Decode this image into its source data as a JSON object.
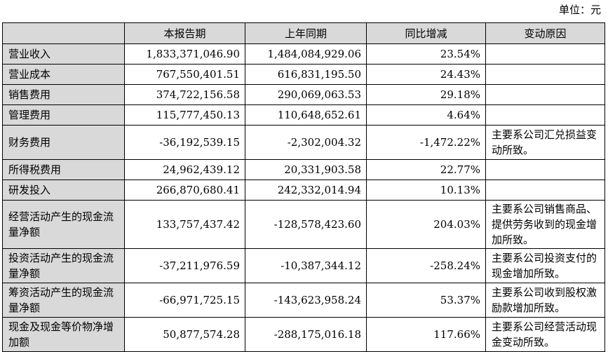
{
  "unit_label": "单位：元",
  "headers": [
    "",
    "本报告期",
    "上年同期",
    "同比增减",
    "变动原因"
  ],
  "rows": [
    {
      "item": "营业收入",
      "current": "1,833,371,046.90",
      "previous": "1,484,084,929.06",
      "change": "23.54%",
      "reason": ""
    },
    {
      "item": "营业成本",
      "current": "767,550,401.51",
      "previous": "616,831,195.50",
      "change": "24.43%",
      "reason": ""
    },
    {
      "item": "销售费用",
      "current": "374,722,156.58",
      "previous": "290,069,063.53",
      "change": "29.18%",
      "reason": ""
    },
    {
      "item": "管理费用",
      "current": "115,777,450.13",
      "previous": "110,648,652.61",
      "change": "4.64%",
      "reason": ""
    },
    {
      "item": "财务费用",
      "current": "-36,192,539.15",
      "previous": "-2,302,004.32",
      "change": "-1,472.22%",
      "reason": "主要系公司汇兑损益变动所致。"
    },
    {
      "item": "所得税费用",
      "current": "24,962,439.12",
      "previous": "20,331,903.58",
      "change": "22.77%",
      "reason": ""
    },
    {
      "item": "研发投入",
      "current": "266,870,680.41",
      "previous": "242,332,014.94",
      "change": "10.13%",
      "reason": ""
    },
    {
      "item": "经营活动产生的现金流量净额",
      "current": "133,757,437.42",
      "previous": "-128,578,423.60",
      "change": "204.03%",
      "reason": "主要系公司销售商品、提供劳务收到的现金增加所致。"
    },
    {
      "item": "投资活动产生的现金流量净额",
      "current": "-37,211,976.59",
      "previous": "-10,387,344.12",
      "change": "-258.24%",
      "reason": "主要系公司投资支付的现金增加所致。"
    },
    {
      "item": "筹资活动产生的现金流量净额",
      "current": "-66,971,725.15",
      "previous": "-143,623,958.24",
      "change": "53.37%",
      "reason": "主要系公司收到股权激励款增加所致。"
    },
    {
      "item": "现金及现金等价物净增加额",
      "current": "50,877,574.28",
      "previous": "-288,175,016.18",
      "change": "117.66%",
      "reason": "主要系公司经营活动现金变动所致。"
    }
  ]
}
